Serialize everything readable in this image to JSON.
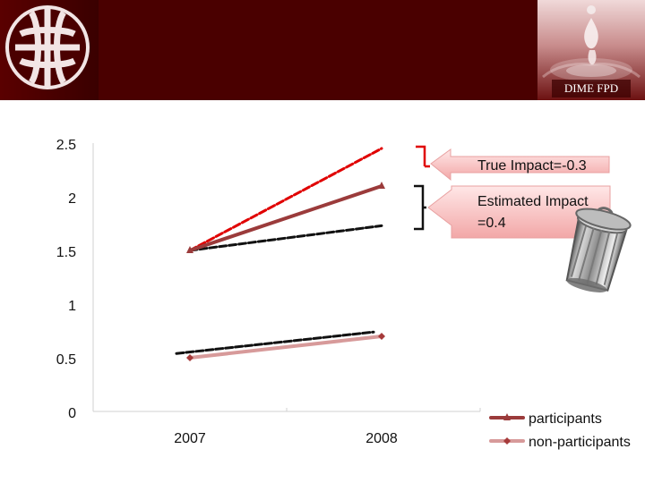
{
  "header": {
    "brand_badge": "DIME FPD"
  },
  "annotations": {
    "true_impact": "True Impact=-0.3",
    "estimated_impact_line1": "Estimated Impact",
    "estimated_impact_line2": "=0.4"
  },
  "chart_data": {
    "type": "line",
    "categories": [
      "2007",
      "2008"
    ],
    "series": [
      {
        "name": "participants",
        "values": [
          1.5,
          2.1
        ],
        "color": "#9b3b3b"
      },
      {
        "name": "non-participants",
        "values": [
          0.5,
          0.7
        ],
        "color": "#d79a9a"
      }
    ],
    "y_ticks": [
      "0",
      "0.5",
      "1",
      "1.5",
      "2",
      "2.5"
    ],
    "ylim": [
      0,
      2.5
    ],
    "grid": false,
    "legend_position": "bottom-right",
    "overlays": [
      {
        "style": "red-dashed",
        "values": [
          1.5,
          2.45
        ]
      },
      {
        "style": "black-dashed",
        "values": [
          1.5,
          1.73
        ]
      },
      {
        "style": "black-dashed",
        "values": [
          0.54,
          0.74
        ]
      }
    ]
  }
}
